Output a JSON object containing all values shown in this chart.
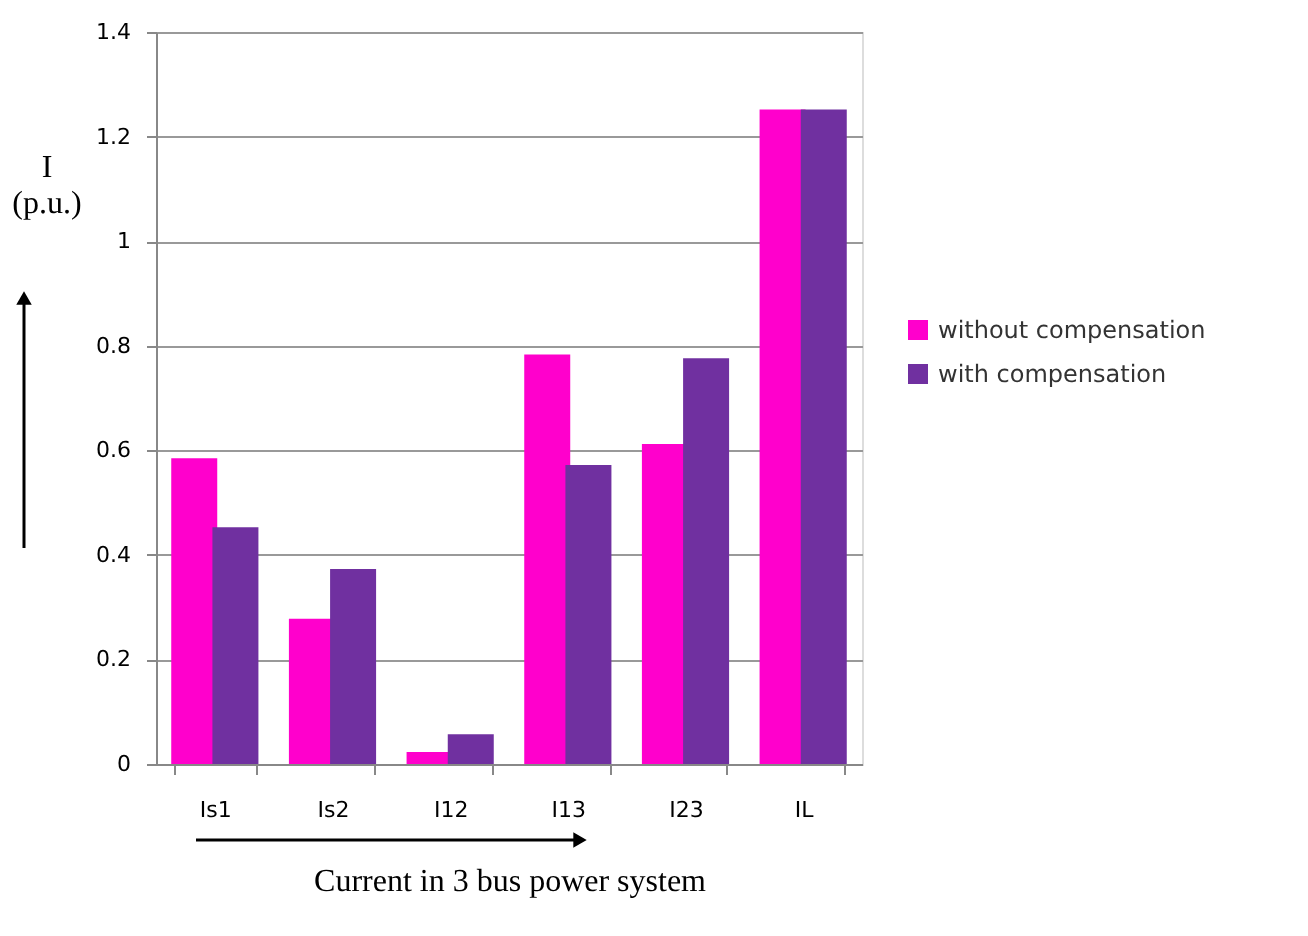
{
  "chart_data": {
    "type": "bar",
    "xlabel": "Current in 3 bus power system",
    "ylabel": "I (p.u.)",
    "categories": [
      "Is1",
      "Is2",
      "I12",
      "I13",
      "I23",
      "IL"
    ],
    "series": [
      {
        "name": "without compensation",
        "color": "#ff00cc",
        "values": [
          0.585,
          0.278,
          0.023,
          0.783,
          0.612,
          1.252
        ]
      },
      {
        "name": "with compensation",
        "color": "#7030a0",
        "values": [
          0.453,
          0.373,
          0.057,
          0.572,
          0.776,
          1.252
        ]
      }
    ],
    "ylim": [
      0,
      1.4
    ],
    "yticks": [
      0,
      0.2,
      0.4,
      0.6,
      0.8,
      1,
      1.2,
      1.4
    ],
    "grid": "y",
    "legend": "right"
  }
}
